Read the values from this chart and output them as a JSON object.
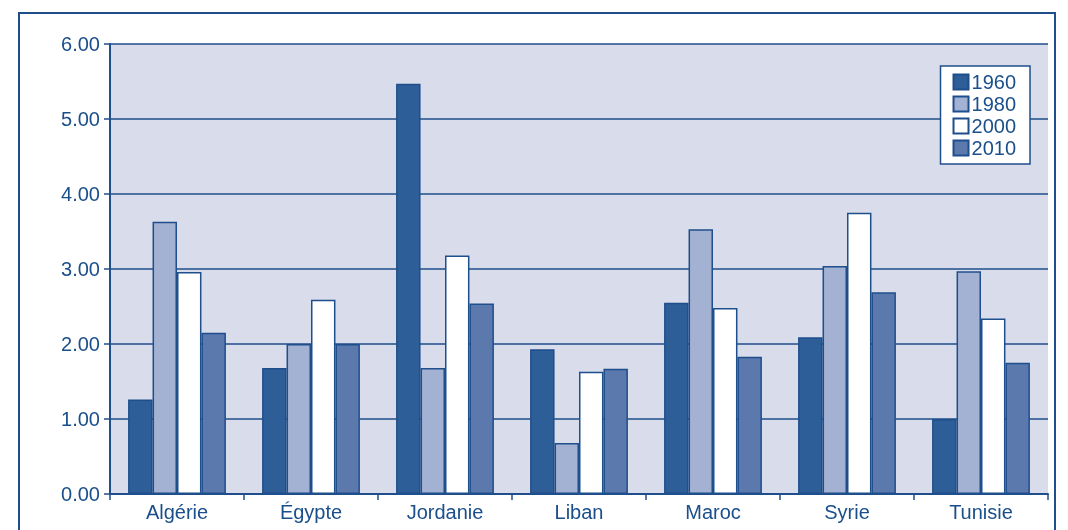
{
  "chart_data": {
    "type": "bar",
    "categories": [
      "Algérie",
      "Égypte",
      "Jordanie",
      "Liban",
      "Maroc",
      "Syrie",
      "Tunisie"
    ],
    "series": [
      {
        "name": "1960",
        "color": "#2e5e98",
        "values": [
          1.26,
          1.68,
          5.47,
          1.93,
          2.55,
          2.09,
          1.0
        ]
      },
      {
        "name": "1980",
        "color": "#a3b1d3",
        "values": [
          3.63,
          2.0,
          1.68,
          0.68,
          3.53,
          3.04,
          2.97
        ]
      },
      {
        "name": "2000",
        "color": "#ffffff",
        "values": [
          2.96,
          2.59,
          3.18,
          1.63,
          2.48,
          3.75,
          2.34
        ]
      },
      {
        "name": "2010",
        "color": "#5b79ad",
        "values": [
          2.15,
          2.0,
          2.54,
          1.67,
          1.83,
          2.69,
          1.75
        ]
      }
    ],
    "ylim": [
      0,
      6
    ],
    "yticks": [
      {
        "value": 0,
        "label": "0.00"
      },
      {
        "value": 1,
        "label": "1.00"
      },
      {
        "value": 2,
        "label": "2.00"
      },
      {
        "value": 3,
        "label": "3.00"
      },
      {
        "value": 4,
        "label": "4.00"
      },
      {
        "value": 5,
        "label": "5.00"
      },
      {
        "value": 6,
        "label": "6.00"
      }
    ],
    "grid": "y",
    "legend": "top right"
  }
}
